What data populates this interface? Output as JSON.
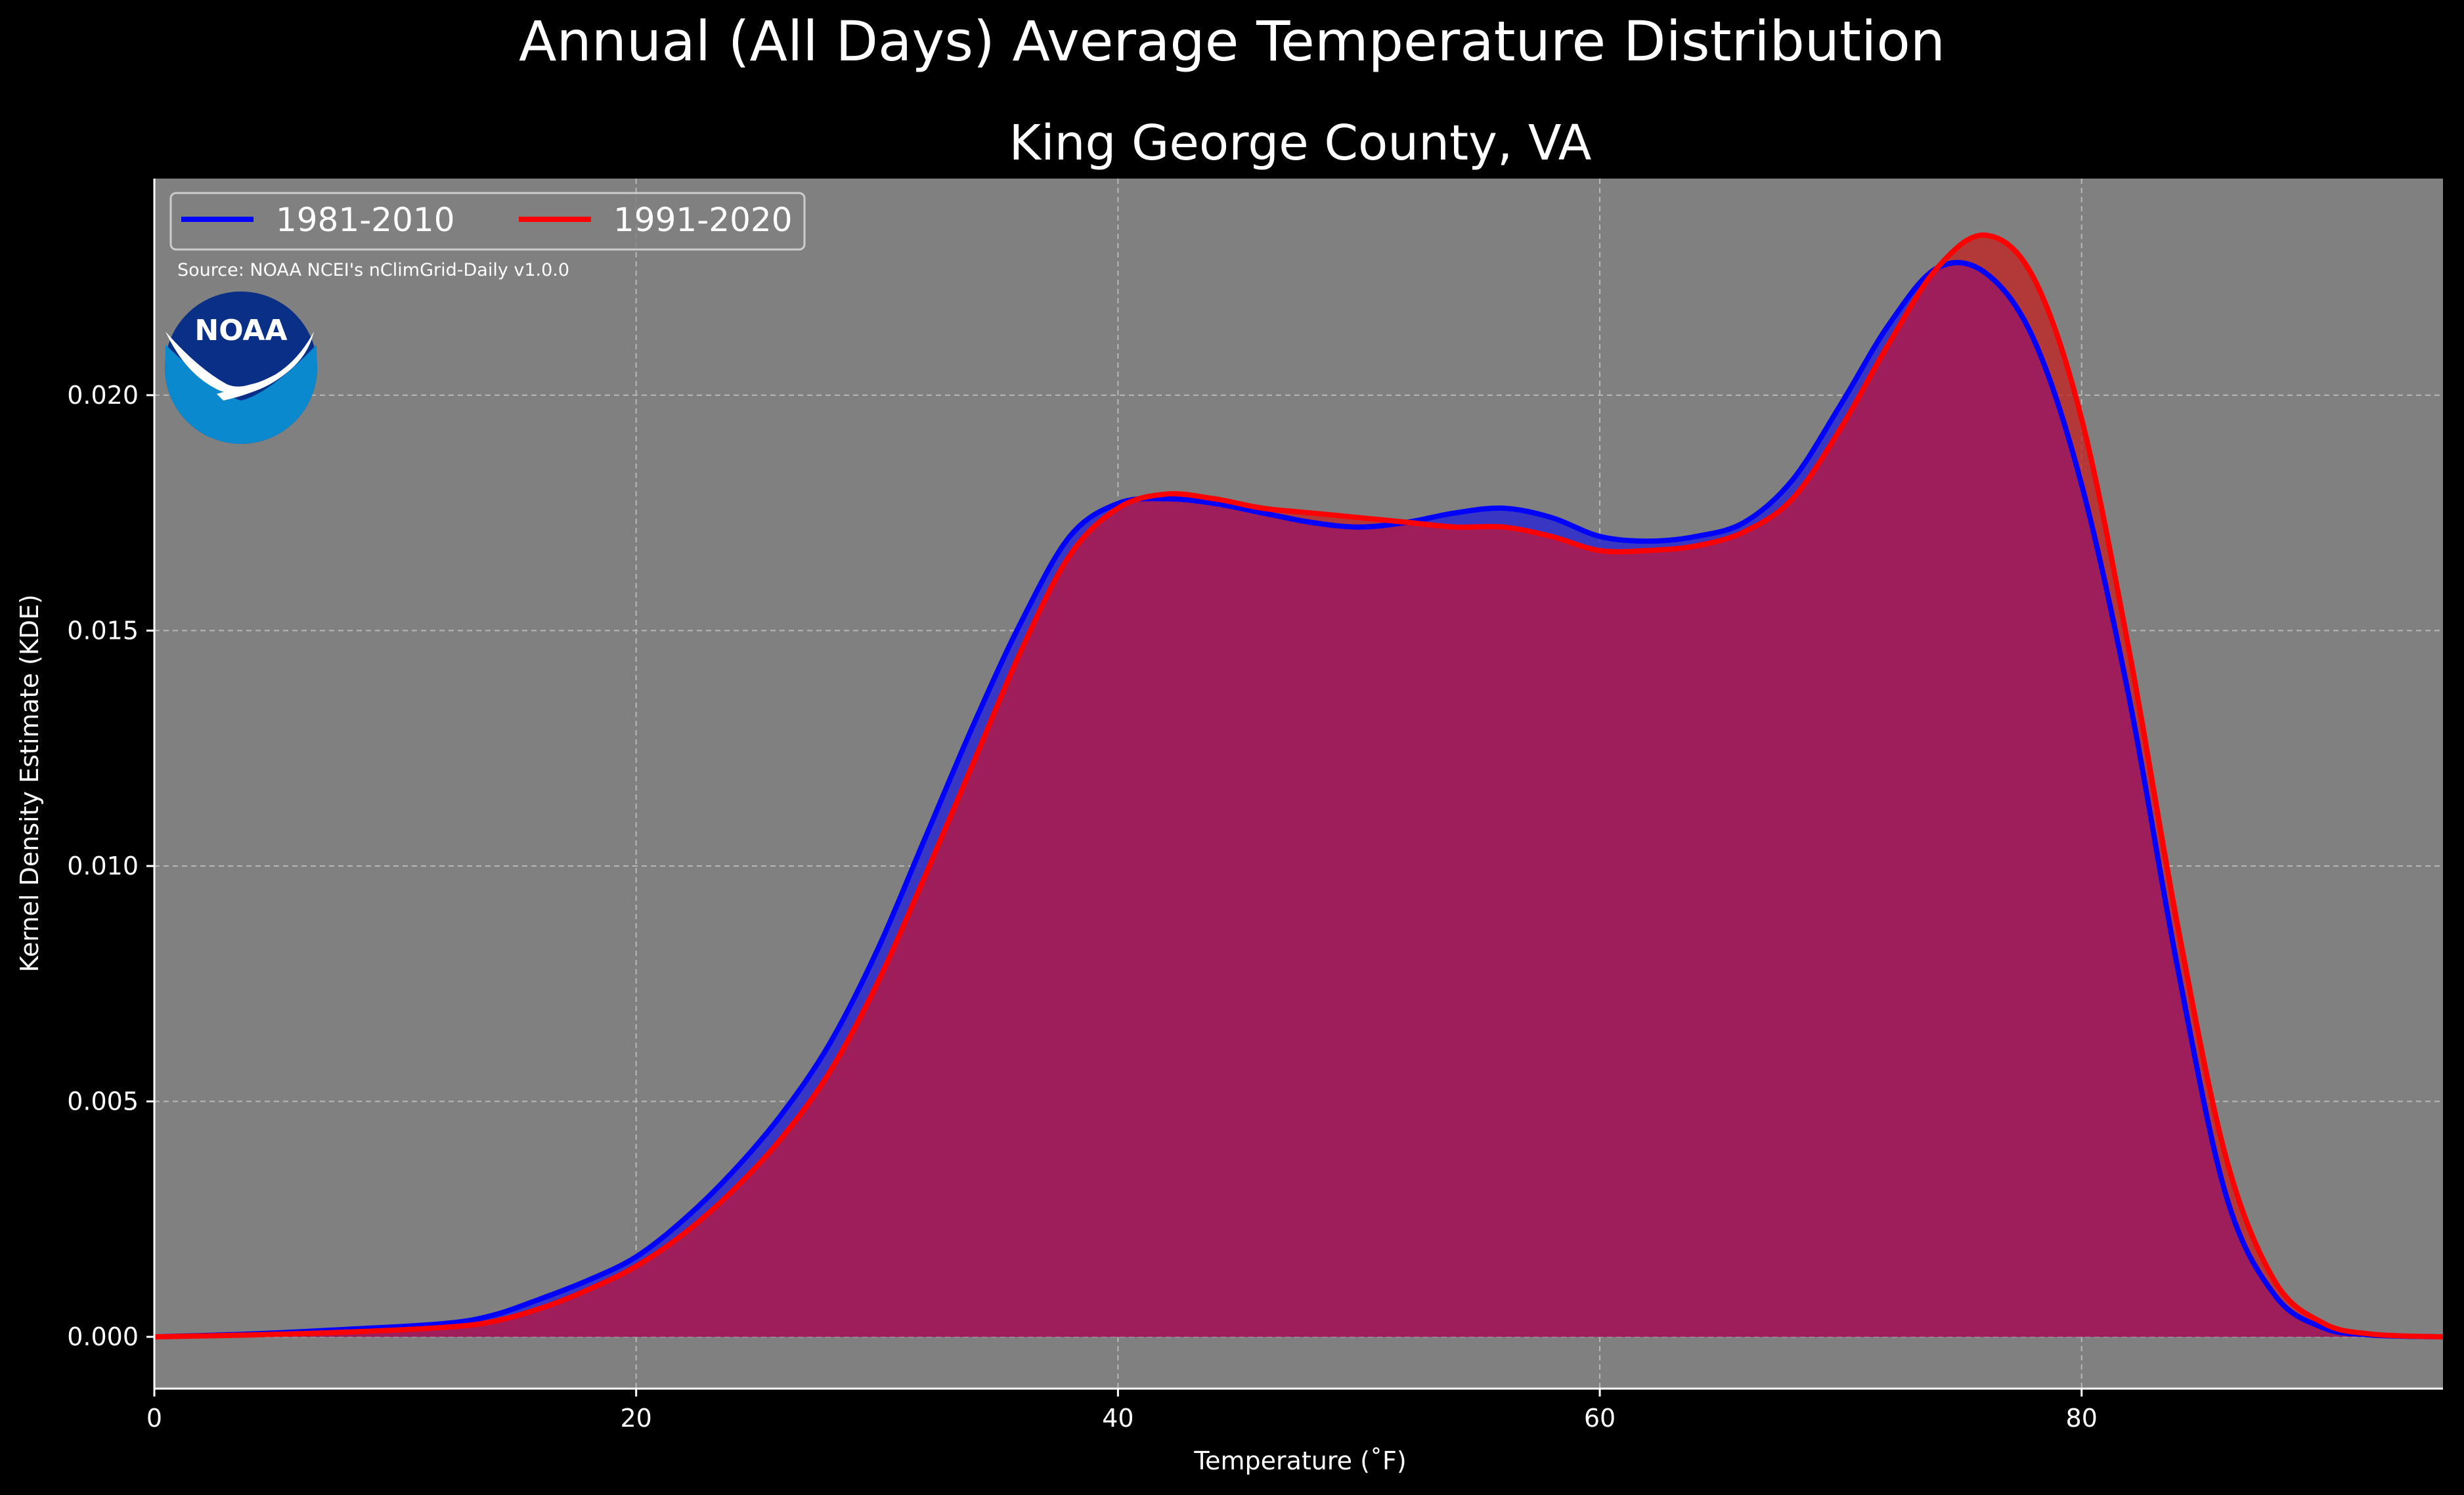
{
  "chart_data": {
    "type": "area",
    "suptitle": "Annual (All Days) Average Temperature Distribution",
    "title": "King George County, VA",
    "xlabel": "Temperature ($^\\circ$F)",
    "xlabel_display": "Temperature (˚F)",
    "ylabel": "Kernel Density Estimate (KDE)",
    "xlim": [
      0,
      95
    ],
    "ylim": [
      -0.0011,
      0.0246
    ],
    "xticks": [
      "0",
      "20",
      "40",
      "60",
      "80"
    ],
    "yticks": [
      "0.000",
      "0.005",
      "0.010",
      "0.015",
      "0.020"
    ],
    "grid": true,
    "legend_position": "top-left",
    "source": "Source: NOAA NCEI's nClimGrid-Daily v1.0.0",
    "logo": "NOAA",
    "x": [
      0,
      4,
      8,
      12,
      14,
      16,
      18,
      20,
      22,
      24,
      26,
      28,
      30,
      32,
      34,
      36,
      38,
      40,
      42,
      44,
      46,
      48,
      50,
      52,
      54,
      56,
      58,
      60,
      62,
      64,
      66,
      68,
      70,
      72,
      74,
      76,
      78,
      80,
      82,
      84,
      86,
      88,
      90,
      92,
      95
    ],
    "series": [
      {
        "name": "1981-2010",
        "color": "#0000ff",
        "values": [
          0.0,
          6e-05,
          0.00016,
          0.00028,
          0.00045,
          0.0008,
          0.0012,
          0.0017,
          0.0025,
          0.0035,
          0.0047,
          0.0062,
          0.0082,
          0.0106,
          0.013,
          0.0152,
          0.017,
          0.0177,
          0.0178,
          0.0177,
          0.0175,
          0.0173,
          0.0172,
          0.0173,
          0.0175,
          0.0176,
          0.0174,
          0.017,
          0.0169,
          0.017,
          0.0173,
          0.0182,
          0.0198,
          0.0215,
          0.0227,
          0.0226,
          0.0212,
          0.0181,
          0.0135,
          0.0078,
          0.003,
          0.0009,
          0.0002,
          4e-05,
          0.0
        ]
      },
      {
        "name": "1991-2020",
        "color": "#ff0000",
        "values": [
          0.0,
          4e-05,
          0.0001,
          0.0002,
          0.00032,
          0.0006,
          0.001,
          0.0015,
          0.0022,
          0.0031,
          0.0042,
          0.0056,
          0.0075,
          0.0098,
          0.0122,
          0.0146,
          0.0166,
          0.0176,
          0.0179,
          0.0178,
          0.0176,
          0.0175,
          0.0174,
          0.0173,
          0.0172,
          0.0172,
          0.017,
          0.0167,
          0.0167,
          0.0168,
          0.0171,
          0.0178,
          0.0193,
          0.0211,
          0.0227,
          0.0234,
          0.0225,
          0.0195,
          0.0145,
          0.0087,
          0.0038,
          0.0012,
          0.0003,
          6e-05,
          0.0
        ]
      }
    ]
  },
  "colors": {
    "figure_bg": "#000000",
    "axes_bg": "#808080",
    "grid": "#b8b8b8",
    "overlap_fill": "#9e1e5c"
  }
}
